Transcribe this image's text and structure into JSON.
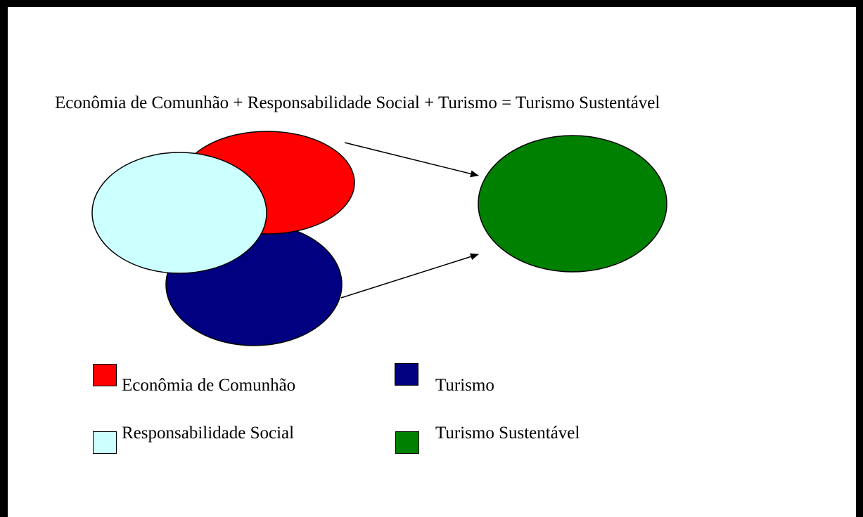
{
  "title": "Econômia de Comunhão + Responsabilidade Social + Turismo = Turismo Sustentável",
  "colors": {
    "economia": "#ff0000",
    "responsabilidade": "#ccffff",
    "turismo": "#000080",
    "sustentavel": "#008000"
  },
  "legend": [
    {
      "key": "economia",
      "label": "Econômia de Comunhão",
      "color": "#ff0000"
    },
    {
      "key": "turismo",
      "label": "Turismo",
      "color": "#000080"
    },
    {
      "key": "responsabilidade",
      "label": "Responsabilidade Social",
      "color": "#ccffff"
    },
    {
      "key": "sustentavel",
      "label": "Turismo Sustentável",
      "color": "#008000"
    }
  ]
}
